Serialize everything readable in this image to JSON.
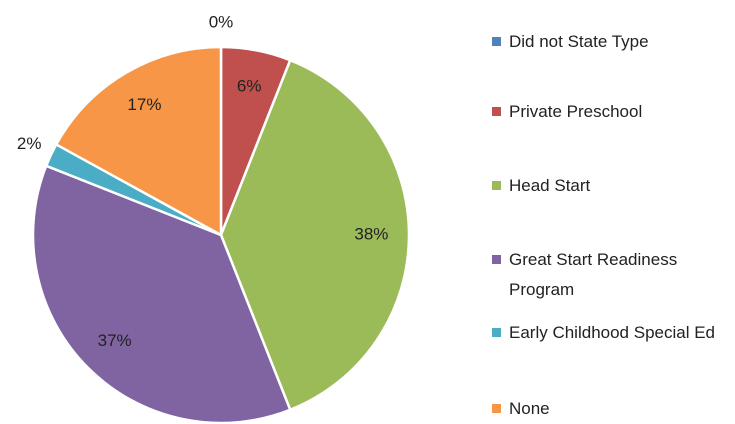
{
  "chart_data": {
    "type": "pie",
    "categories": [
      "Did not State Type",
      "Private Preschool",
      "Head Start",
      "Great Start Readiness Program",
      "Early Childhood Special Ed",
      "None"
    ],
    "values": [
      0,
      6,
      38,
      37,
      2,
      17
    ],
    "value_labels": [
      "0%",
      "6%",
      "38%",
      "37%",
      "2%",
      "17%"
    ],
    "colors": [
      "#4f81bd",
      "#c0504d",
      "#9bbb59",
      "#8064a2",
      "#4bacc6",
      "#f79646"
    ],
    "legend": "right"
  }
}
